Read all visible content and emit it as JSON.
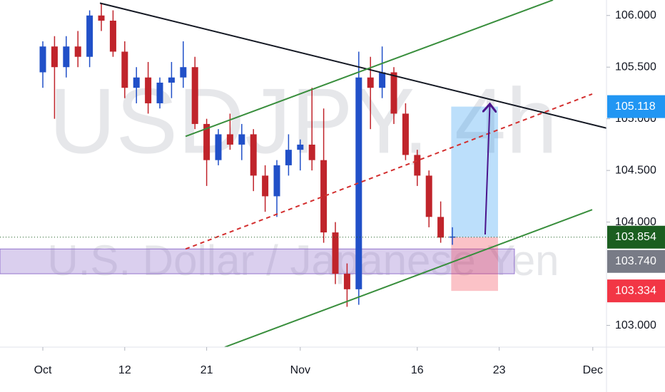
{
  "chart_data": {
    "type": "candlestick",
    "watermark": "USDJPY, 4h",
    "subtitle": "U.S. Dollar / Japanese Yen",
    "up_color": "#2150c8",
    "down_color": "#c0242b",
    "x": [
      0,
      1,
      2,
      3,
      4,
      5,
      6,
      7,
      8,
      9,
      10,
      11,
      12,
      13,
      14,
      15,
      16,
      17,
      18,
      19,
      20,
      21,
      22,
      23,
      24,
      25,
      26,
      27,
      28,
      29,
      30,
      31,
      32,
      33,
      34,
      35
    ],
    "open": [
      105.45,
      105.7,
      105.5,
      105.7,
      105.6,
      106.0,
      105.95,
      105.65,
      105.3,
      105.4,
      105.15,
      105.35,
      105.4,
      105.5,
      104.95,
      104.6,
      104.85,
      104.75,
      104.85,
      104.45,
      104.25,
      104.55,
      104.7,
      104.75,
      104.6,
      103.9,
      103.5,
      103.35,
      105.4,
      105.3,
      105.45,
      105.05,
      104.65,
      104.45,
      104.05,
      103.85
    ],
    "high": [
      105.75,
      105.8,
      105.8,
      105.85,
      106.05,
      106.12,
      106.05,
      105.75,
      105.5,
      105.55,
      105.4,
      105.55,
      105.75,
      105.6,
      105.0,
      104.9,
      105.05,
      104.95,
      104.9,
      104.55,
      104.6,
      104.85,
      104.8,
      105.3,
      105.1,
      104.0,
      103.6,
      105.65,
      105.6,
      105.7,
      105.5,
      105.15,
      104.7,
      104.5,
      104.2,
      103.95
    ],
    "low": [
      105.3,
      105.0,
      105.4,
      105.5,
      105.5,
      105.85,
      105.6,
      105.2,
      105.15,
      105.05,
      105.1,
      105.2,
      105.3,
      104.9,
      104.35,
      104.55,
      104.7,
      104.6,
      104.3,
      104.1,
      104.05,
      104.45,
      104.5,
      104.5,
      103.8,
      103.4,
      103.18,
      103.2,
      104.9,
      105.2,
      104.95,
      104.6,
      104.35,
      103.95,
      103.8,
      103.78
    ],
    "close": [
      105.7,
      105.5,
      105.7,
      105.6,
      106.0,
      105.95,
      105.65,
      105.3,
      105.4,
      105.15,
      105.35,
      105.4,
      105.5,
      104.95,
      104.6,
      104.85,
      104.75,
      104.85,
      104.45,
      104.25,
      104.55,
      104.7,
      104.75,
      104.6,
      103.9,
      103.5,
      103.35,
      105.4,
      105.3,
      105.45,
      105.05,
      104.65,
      104.45,
      104.05,
      103.85,
      103.86
    ],
    "xlim": [
      -3.66,
      48.17
    ],
    "ylim": [
      102.79,
      106.15
    ],
    "xticks": [
      {
        "value": 0,
        "label": "Oct"
      },
      {
        "value": 7,
        "label": "12"
      },
      {
        "value": 14,
        "label": "21"
      },
      {
        "value": 22,
        "label": "Nov"
      },
      {
        "value": 32,
        "label": "16"
      },
      {
        "value": 39,
        "label": "23"
      },
      {
        "value": 47,
        "label": "Dec"
      }
    ],
    "yticks": [
      {
        "value": 106,
        "label": "106.000"
      },
      {
        "value": 105.5,
        "label": "105.500"
      },
      {
        "value": 105,
        "label": "105.000"
      },
      {
        "value": 104.5,
        "label": "104.500"
      },
      {
        "value": 104,
        "label": "104.000"
      },
      {
        "value": 103,
        "label": "103.000"
      }
    ],
    "trendlines": [
      {
        "color": "#131722",
        "dashed": false,
        "x": [
          4.88,
          48.17
        ],
        "y": [
          106.12,
          104.91
        ]
      },
      {
        "color": "#388e3c",
        "dashed": false,
        "x": [
          12.2,
          43.6
        ],
        "y": [
          104.83,
          106.15
        ]
      },
      {
        "color": "#388e3c",
        "dashed": false,
        "x": [
          15.55,
          46.95
        ],
        "y": [
          102.79,
          104.12
        ]
      },
      {
        "color": "#d32f2f",
        "dashed": true,
        "x": [
          12.2,
          46.95
        ],
        "y": [
          103.74,
          105.24
        ]
      },
      {
        "color": "#4a148c",
        "dashed": false,
        "arrow": true,
        "x": [
          37.8,
          38.2
        ],
        "y": [
          103.88,
          105.13
        ]
      }
    ],
    "zone": {
      "color": "#9575cd",
      "top": 103.74,
      "bottom": 103.5,
      "x": [
        -3.66,
        40.3
      ]
    },
    "position": {
      "entry": 103.854,
      "target": 105.118,
      "stop": 103.334,
      "x": [
        34.9,
        38.9
      ]
    },
    "price_labels": [
      {
        "value": 105.118,
        "label": "105.118",
        "color": "#2196f3"
      },
      {
        "value": 103.854,
        "label": "103.854",
        "color": "#1b5e20"
      },
      {
        "value": 103.74,
        "label": "103.740",
        "color": "#787b86"
      },
      {
        "value": 103.334,
        "label": "103.334",
        "color": "#f23645"
      }
    ]
  }
}
